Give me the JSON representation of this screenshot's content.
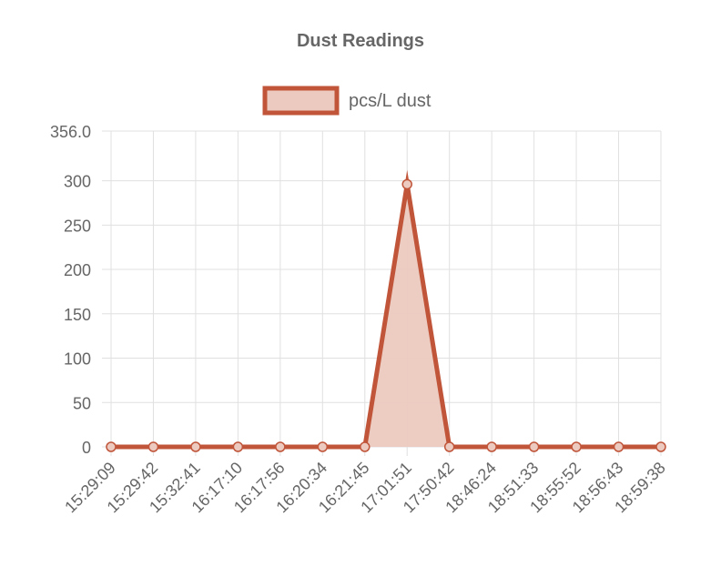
{
  "chart_data": {
    "type": "area",
    "title": "Dust Readings",
    "categories": [
      "15:29:09",
      "15:29:42",
      "15:32:41",
      "16:17:10",
      "16:17:56",
      "16:20:34",
      "16:21:45",
      "17:01:51",
      "17:50:42",
      "18:46:24",
      "18:51:33",
      "18:55:52",
      "18:56:43",
      "18:59:38"
    ],
    "series": [
      {
        "name": "pcs/L dust",
        "values": [
          0,
          0,
          0,
          0,
          0,
          0,
          0,
          296,
          0,
          0,
          0,
          0,
          0,
          0
        ]
      }
    ],
    "y_ticks": [
      "0",
      "50",
      "100",
      "150",
      "200",
      "250",
      "300",
      "356.0"
    ],
    "y_tick_values": [
      0,
      50,
      100,
      150,
      200,
      250,
      300,
      356
    ],
    "ylim": [
      0,
      356
    ],
    "xlabel": "",
    "ylabel": "",
    "grid": true,
    "legend": "top-center",
    "colors": {
      "line": "#c0553a",
      "fill": "#eccabf",
      "grid": "#e0e0e0",
      "text": "#666666",
      "title": "#666666"
    }
  }
}
